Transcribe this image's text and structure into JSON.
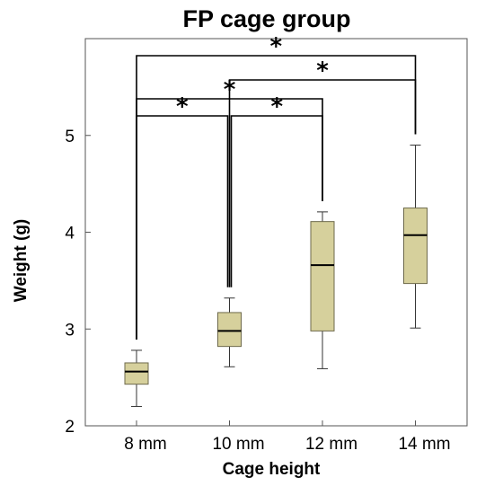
{
  "chart_data": {
    "type": "box",
    "title": "FP cage group",
    "xlabel": "Cage height",
    "ylabel": "Weight (g)",
    "ylim": [
      2,
      6.0
    ],
    "yticks": [
      2,
      3,
      4,
      5
    ],
    "categories": [
      "8 mm",
      "10 mm",
      "12 mm",
      "14 mm"
    ],
    "boxes": [
      {
        "category": "8 mm",
        "min": 2.2,
        "q1": 2.43,
        "median": 2.56,
        "q3": 2.65,
        "max": 2.78
      },
      {
        "category": "10 mm",
        "min": 2.61,
        "q1": 2.82,
        "median": 2.98,
        "q3": 3.17,
        "max": 3.32
      },
      {
        "category": "12 mm",
        "min": 2.59,
        "q1": 2.98,
        "median": 3.66,
        "q3": 4.11,
        "max": 4.21
      },
      {
        "category": "14 mm",
        "min": 3.01,
        "q1": 3.47,
        "median": 3.97,
        "q3": 4.25,
        "max": 4.9
      }
    ],
    "significance": [
      {
        "from": "8 mm",
        "to": "14 mm",
        "label": "*"
      },
      {
        "from": "10 mm",
        "to": "14 mm",
        "label": "*"
      },
      {
        "from": "8 mm",
        "to": "12 mm",
        "label": "*"
      },
      {
        "from": "8 mm",
        "to": "10 mm",
        "label": "*"
      },
      {
        "from": "10 mm",
        "to": "12 mm",
        "label": "*"
      }
    ],
    "box_color": "#d6d09c",
    "box_stroke": "#6e6a4c",
    "grid": false
  }
}
